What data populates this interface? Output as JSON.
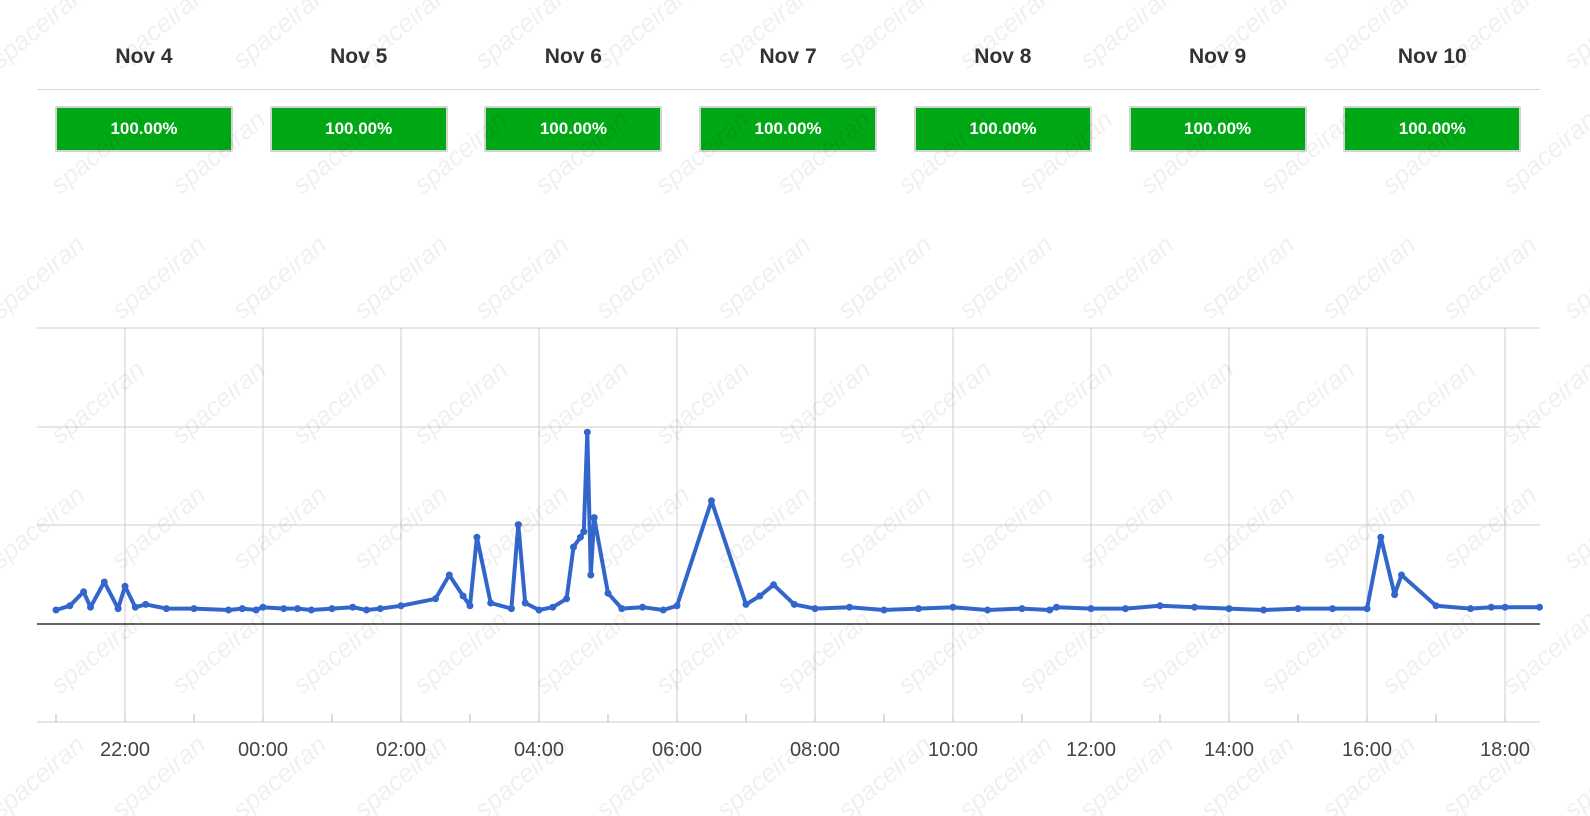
{
  "days": [
    {
      "label": "Nov 4",
      "uptime": "100.00%"
    },
    {
      "label": "Nov 5",
      "uptime": "100.00%"
    },
    {
      "label": "Nov 6",
      "uptime": "100.00%"
    },
    {
      "label": "Nov 7",
      "uptime": "100.00%"
    },
    {
      "label": "Nov 8",
      "uptime": "100.00%"
    },
    {
      "label": "Nov 9",
      "uptime": "100.00%"
    },
    {
      "label": "Nov 10",
      "uptime": "100.00%"
    }
  ],
  "colors": {
    "status_ok": "#00a816",
    "series": "#3366cc",
    "grid": "#cccccc"
  },
  "watermark": "spaceiran",
  "chart_data": {
    "type": "line",
    "x_tick_labels": [
      "22:00",
      "00:00",
      "02:00",
      "04:00",
      "06:00",
      "08:00",
      "10:00",
      "12:00",
      "14:00",
      "16:00",
      "18:00"
    ],
    "grid": true,
    "x": [
      21.0,
      21.2,
      21.4,
      21.5,
      21.7,
      21.9,
      22.0,
      22.15,
      22.3,
      22.6,
      23.0,
      23.5,
      23.7,
      23.9,
      24.0,
      24.3,
      24.5,
      24.7,
      25.0,
      25.3,
      25.5,
      25.7,
      26.0,
      26.5,
      26.7,
      26.9,
      27.0,
      27.1,
      27.3,
      27.6,
      27.7,
      27.8,
      28.0,
      28.2,
      28.4,
      28.5,
      28.6,
      28.65,
      28.7,
      28.75,
      28.8,
      29.0,
      29.2,
      29.5,
      29.8,
      30.0,
      30.5,
      31.0,
      31.2,
      31.4,
      31.7,
      32.0,
      32.5,
      33.0,
      33.5,
      34.0,
      34.5,
      35.0,
      35.4,
      35.5,
      36.0,
      36.5,
      37.0,
      37.5,
      38.0,
      38.5,
      39.0,
      39.5,
      40.0,
      40.2,
      40.4,
      40.5,
      41.0,
      41.5,
      41.8,
      42.0,
      42.5
    ],
    "y": [
      10,
      13,
      23,
      12,
      30,
      11,
      27,
      12,
      14,
      11,
      11,
      10,
      11,
      10,
      12,
      11,
      11,
      10,
      11,
      12,
      10,
      11,
      13,
      18,
      35,
      20,
      13,
      62,
      15,
      11,
      71,
      15,
      10,
      12,
      18,
      55,
      62,
      66,
      137,
      35,
      76,
      22,
      11,
      12,
      10,
      13,
      88,
      14,
      20,
      28,
      14,
      11,
      12,
      10,
      11,
      12,
      10,
      11,
      10,
      12,
      11,
      11,
      13,
      12,
      11,
      10,
      11,
      11,
      11,
      62,
      21,
      35,
      13,
      11,
      12,
      12,
      12
    ],
    "baseline": 0
  }
}
